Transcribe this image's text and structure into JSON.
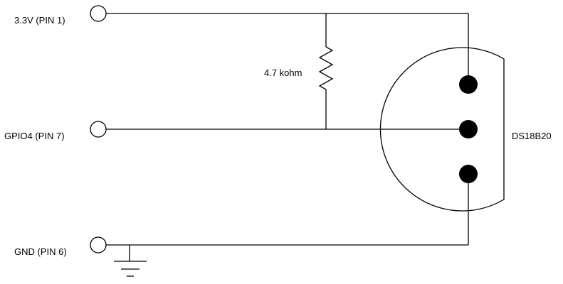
{
  "diagram": {
    "terminals": {
      "vcc_label": "3.3V (PIN 1)",
      "gpio_label": "GPIO4 (PIN 7)",
      "gnd_label": "GND (PIN 6)"
    },
    "resistor": {
      "label": "4.7 kohm"
    },
    "sensor": {
      "label": "DS18B20"
    }
  }
}
